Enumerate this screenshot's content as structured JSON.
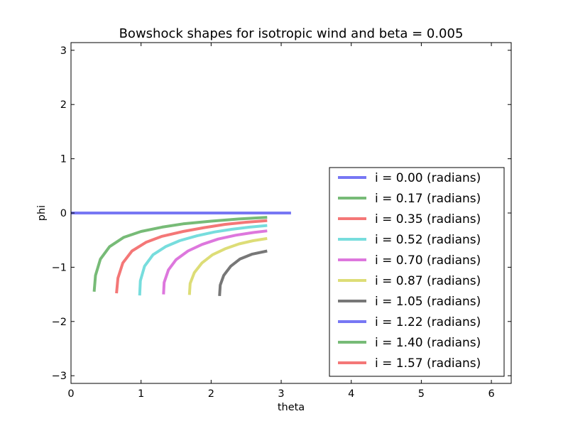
{
  "chart_data": {
    "type": "line",
    "title": "Bowshock shapes for isotropic wind and beta = 0.005",
    "xlabel": "theta",
    "ylabel": "phi",
    "xlim": [
      0,
      6.283
    ],
    "ylim": [
      -3.1416,
      3.1416
    ],
    "xticks": [
      0,
      1,
      2,
      3,
      4,
      5,
      6
    ],
    "yticks": [
      -3,
      -2,
      -1,
      0,
      1,
      2,
      3
    ],
    "xtick_labels": [
      "0",
      "1",
      "2",
      "3",
      "4",
      "5",
      "6"
    ],
    "ytick_labels": [
      "−3",
      "−2",
      "−1",
      "0",
      "1",
      "2",
      "3"
    ],
    "grid": false,
    "legend_position": "lower-right",
    "series": [
      {
        "name": "i = 0.00 (radians)",
        "color": "#7777f4",
        "points": [
          [
            0.0,
            0.0
          ],
          [
            3.14,
            0.0
          ]
        ]
      },
      {
        "name": "i = 0.17 (radians)",
        "color": "#77bb77",
        "points": [
          [
            0.33,
            -1.45
          ],
          [
            0.35,
            -1.15
          ],
          [
            0.42,
            -0.85
          ],
          [
            0.55,
            -0.62
          ],
          [
            0.75,
            -0.45
          ],
          [
            1.0,
            -0.34
          ],
          [
            1.3,
            -0.26
          ],
          [
            1.6,
            -0.2
          ],
          [
            2.0,
            -0.15
          ],
          [
            2.4,
            -0.11
          ],
          [
            2.8,
            -0.08
          ]
        ]
      },
      {
        "name": "i = 0.35 (radians)",
        "color": "#f47777",
        "points": [
          [
            0.65,
            -1.48
          ],
          [
            0.67,
            -1.2
          ],
          [
            0.74,
            -0.92
          ],
          [
            0.87,
            -0.7
          ],
          [
            1.07,
            -0.54
          ],
          [
            1.3,
            -0.43
          ],
          [
            1.6,
            -0.34
          ],
          [
            1.9,
            -0.27
          ],
          [
            2.2,
            -0.21
          ],
          [
            2.5,
            -0.17
          ],
          [
            2.8,
            -0.14
          ]
        ]
      },
      {
        "name": "i = 0.52 (radians)",
        "color": "#77dddd",
        "points": [
          [
            0.98,
            -1.52
          ],
          [
            0.99,
            -1.25
          ],
          [
            1.05,
            -0.98
          ],
          [
            1.17,
            -0.77
          ],
          [
            1.35,
            -0.62
          ],
          [
            1.55,
            -0.51
          ],
          [
            1.8,
            -0.42
          ],
          [
            2.05,
            -0.35
          ],
          [
            2.3,
            -0.3
          ],
          [
            2.55,
            -0.26
          ],
          [
            2.8,
            -0.23
          ]
        ]
      },
      {
        "name": "i = 0.70 (radians)",
        "color": "#dd77dd",
        "points": [
          [
            1.32,
            -1.5
          ],
          [
            1.33,
            -1.28
          ],
          [
            1.39,
            -1.05
          ],
          [
            1.5,
            -0.86
          ],
          [
            1.67,
            -0.7
          ],
          [
            1.87,
            -0.58
          ],
          [
            2.1,
            -0.48
          ],
          [
            2.35,
            -0.41
          ],
          [
            2.6,
            -0.36
          ],
          [
            2.8,
            -0.33
          ]
        ]
      },
      {
        "name": "i = 0.87 (radians)",
        "color": "#dddd77",
        "points": [
          [
            1.69,
            -1.51
          ],
          [
            1.7,
            -1.3
          ],
          [
            1.76,
            -1.1
          ],
          [
            1.87,
            -0.92
          ],
          [
            2.02,
            -0.77
          ],
          [
            2.2,
            -0.66
          ],
          [
            2.4,
            -0.57
          ],
          [
            2.6,
            -0.51
          ],
          [
            2.8,
            -0.47
          ]
        ]
      },
      {
        "name": "i = 1.05 (radians)",
        "color": "#777777",
        "points": [
          [
            2.12,
            -1.53
          ],
          [
            2.13,
            -1.33
          ],
          [
            2.18,
            -1.15
          ],
          [
            2.28,
            -0.98
          ],
          [
            2.41,
            -0.85
          ],
          [
            2.58,
            -0.76
          ],
          [
            2.8,
            -0.7
          ]
        ]
      },
      {
        "name": "i = 1.22 (radians)",
        "color": "#7777f4",
        "points": []
      },
      {
        "name": "i = 1.40 (radians)",
        "color": "#77bb77",
        "points": []
      },
      {
        "name": "i = 1.57 (radians)",
        "color": "#f47777",
        "points": []
      }
    ]
  }
}
